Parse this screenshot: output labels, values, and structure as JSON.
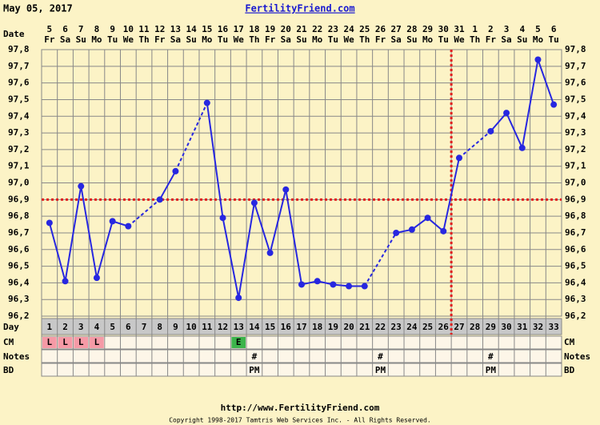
{
  "chart_data": {
    "type": "line",
    "title": "FertilityFriend.com",
    "chart_date": "May 05, 2017",
    "row_labels": {
      "date": "Date",
      "day": "Day",
      "cm": "CM",
      "notes": "Notes",
      "bd": "BD"
    },
    "x": [
      1,
      2,
      3,
      4,
      5,
      6,
      7,
      8,
      9,
      10,
      11,
      12,
      13,
      14,
      15,
      16,
      17,
      18,
      19,
      20,
      21,
      22,
      23,
      24,
      25,
      26,
      27,
      28,
      29,
      30,
      31,
      32,
      33
    ],
    "xlim": [
      0.5,
      33.5
    ],
    "dates": [
      5,
      6,
      7,
      8,
      9,
      10,
      11,
      12,
      13,
      14,
      15,
      16,
      17,
      18,
      19,
      20,
      21,
      22,
      23,
      24,
      25,
      26,
      27,
      28,
      29,
      30,
      31,
      1,
      2,
      3,
      4,
      5,
      6
    ],
    "weekdays": [
      "Fr",
      "Sa",
      "Su",
      "Mo",
      "Tu",
      "We",
      "Th",
      "Fr",
      "Sa",
      "Su",
      "Mo",
      "Tu",
      "We",
      "Th",
      "Fr",
      "Sa",
      "Su",
      "Mo",
      "Tu",
      "We",
      "Th",
      "Fr",
      "Sa",
      "Su",
      "Mo",
      "Tu",
      "We",
      "Th",
      "Fr",
      "Sa",
      "Su",
      "Mo",
      "Tu"
    ],
    "series": [
      {
        "color": "#2727e0",
        "values": [
          96.76,
          96.41,
          96.98,
          96.43,
          96.77,
          96.74,
          null,
          96.9,
          97.07,
          null,
          97.48,
          96.79,
          96.31,
          96.88,
          96.58,
          96.96,
          96.39,
          96.41,
          96.39,
          96.38,
          96.38,
          null,
          96.7,
          96.72,
          96.79,
          96.71,
          97.15,
          null,
          97.31,
          97.42,
          97.21,
          97.74,
          97.47
        ]
      }
    ],
    "ylim": [
      96.2,
      97.8
    ],
    "yticks": [
      {
        "value": 96.2,
        "label": "96,2"
      },
      {
        "value": 96.3,
        "label": "96,3"
      },
      {
        "value": 96.4,
        "label": "96,4"
      },
      {
        "value": 96.5,
        "label": "96,5"
      },
      {
        "value": 96.6,
        "label": "96,6"
      },
      {
        "value": 96.7,
        "label": "96,7"
      },
      {
        "value": 96.8,
        "label": "96,8"
      },
      {
        "value": 96.9,
        "label": "96,9"
      },
      {
        "value": 97.0,
        "label": "97,0"
      },
      {
        "value": 97.1,
        "label": "97,1"
      },
      {
        "value": 97.2,
        "label": "97,2"
      },
      {
        "value": 97.3,
        "label": "97,3"
      },
      {
        "value": 97.4,
        "label": "97,4"
      },
      {
        "value": 97.5,
        "label": "97,5"
      },
      {
        "value": 97.6,
        "label": "97,6"
      },
      {
        "value": 97.7,
        "label": "97,7"
      },
      {
        "value": 97.8,
        "label": "97,8"
      }
    ],
    "grid": true,
    "coverline": 96.9,
    "ovulation_day": 26,
    "cm": [
      "L",
      "L",
      "L",
      "L",
      null,
      null,
      null,
      null,
      null,
      null,
      null,
      null,
      "E",
      null,
      null,
      null,
      null,
      null,
      null,
      null,
      null,
      null,
      null,
      null,
      null,
      null,
      null,
      null,
      null,
      null,
      null,
      null,
      null
    ],
    "notes": [
      null,
      null,
      null,
      null,
      null,
      null,
      null,
      null,
      null,
      null,
      null,
      null,
      null,
      "#",
      null,
      null,
      null,
      null,
      null,
      null,
      null,
      "#",
      null,
      null,
      null,
      null,
      null,
      null,
      "#",
      null,
      null,
      null,
      null
    ],
    "bd": [
      null,
      null,
      null,
      null,
      null,
      null,
      null,
      null,
      null,
      null,
      null,
      null,
      null,
      "PM",
      null,
      null,
      null,
      null,
      null,
      null,
      null,
      "PM",
      null,
      null,
      null,
      null,
      null,
      null,
      "PM",
      null,
      null,
      null,
      null
    ],
    "footer_url": "http://www.FertilityFriend.com",
    "copyright": "Copyright 1998-2017 Tamtris Web Services Inc. - All Rights Reserved."
  }
}
